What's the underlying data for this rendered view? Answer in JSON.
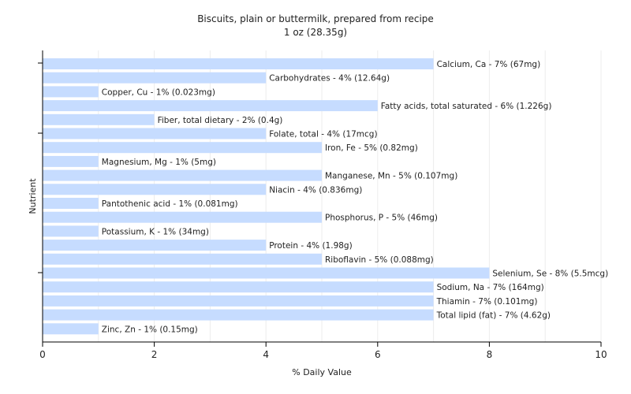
{
  "chart_data": {
    "type": "bar",
    "orientation": "horizontal",
    "title": "Biscuits, plain or buttermilk, prepared from recipe",
    "subtitle": "1 oz (28.35g)",
    "xlabel": "% Daily Value",
    "ylabel": "Nutrient",
    "xlim": [
      0,
      10
    ],
    "xticks": [
      "0",
      "2",
      "4",
      "6",
      "8",
      "10"
    ],
    "grid": "vertical",
    "bar_color": "#c6dcff",
    "categories": [
      "Calcium, Ca",
      "Carbohydrates",
      "Copper, Cu",
      "Fatty acids, total saturated",
      "Fiber, total dietary",
      "Folate, total",
      "Iron, Fe",
      "Magnesium, Mg",
      "Manganese, Mn",
      "Niacin",
      "Pantothenic acid",
      "Phosphorus, P",
      "Potassium, K",
      "Protein",
      "Riboflavin",
      "Selenium, Se",
      "Sodium, Na",
      "Thiamin",
      "Total lipid (fat)",
      "Zinc, Zn"
    ],
    "values": [
      7,
      4,
      1,
      6,
      2,
      4,
      5,
      1,
      5,
      4,
      1,
      5,
      1,
      4,
      5,
      8,
      7,
      7,
      7,
      1
    ],
    "labels": [
      "Calcium, Ca - 7% (67mg)",
      "Carbohydrates - 4% (12.64g)",
      "Copper, Cu - 1% (0.023mg)",
      "Fatty acids, total saturated - 6% (1.226g)",
      "Fiber, total dietary - 2% (0.4g)",
      "Folate, total - 4% (17mcg)",
      "Iron, Fe - 5% (0.82mg)",
      "Magnesium, Mg - 1% (5mg)",
      "Manganese, Mn - 5% (0.107mg)",
      "Niacin - 4% (0.836mg)",
      "Pantothenic acid - 1% (0.081mg)",
      "Phosphorus, P - 5% (46mg)",
      "Potassium, K - 1% (34mg)",
      "Protein - 4% (1.98g)",
      "Riboflavin - 5% (0.088mg)",
      "Selenium, Se - 8% (5.5mcg)",
      "Sodium, Na - 7% (164mg)",
      "Thiamin - 7% (0.101mg)",
      "Total lipid (fat) - 7% (4.62g)",
      "Zinc, Zn - 1% (0.15mg)"
    ]
  }
}
